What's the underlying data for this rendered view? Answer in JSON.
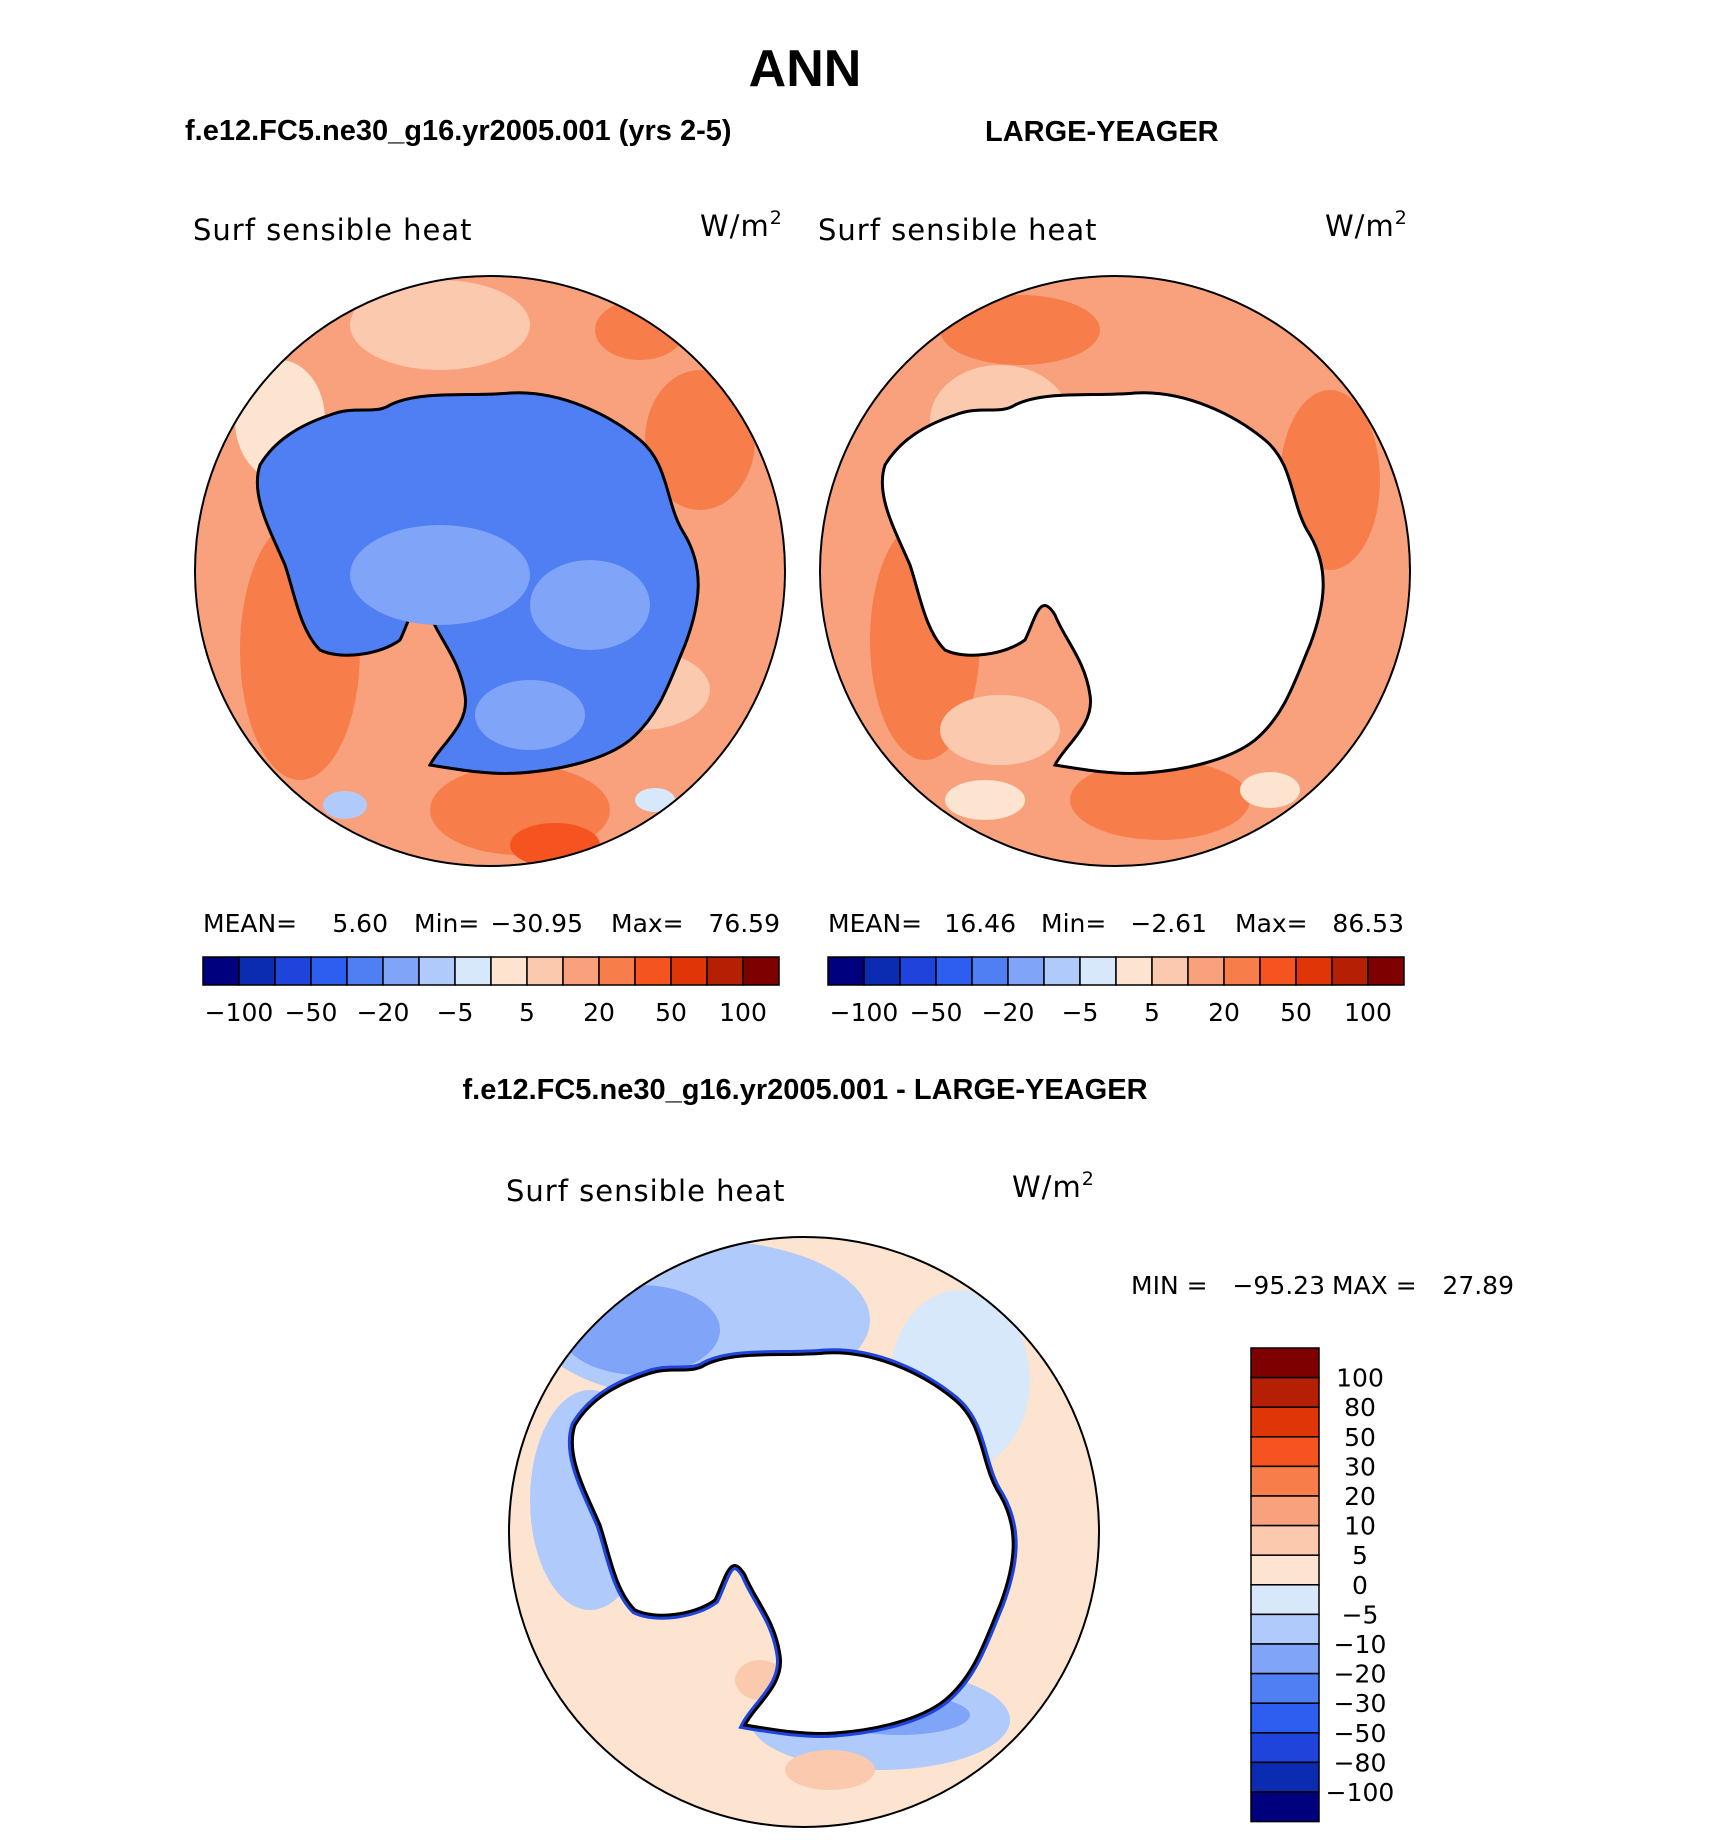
{
  "title": "ANN",
  "panels": {
    "left": {
      "case_label": "f.e12.FC5.ne30_g16.yr2005.001 (yrs 2-5)",
      "variable_label": "Surf sensible heat",
      "units_base": "W/m",
      "units_exp": "2",
      "stats": {
        "mean_label": "MEAN=",
        "mean_value": "5.60",
        "min_label": "Min=",
        "min_value": "−30.95",
        "max_label": "Max=",
        "max_value": "76.59"
      }
    },
    "right": {
      "case_label": "LARGE-YEAGER",
      "variable_label": "Surf sensible heat",
      "units_base": "W/m",
      "units_exp": "2",
      "stats": {
        "mean_label": "MEAN=",
        "mean_value": "16.46",
        "min_label": "Min=",
        "min_value": "−2.61",
        "max_label": "Max=",
        "max_value": "86.53"
      }
    },
    "diff": {
      "case_label": "f.e12.FC5.ne30_g16.yr2005.001 - LARGE-YEAGER",
      "variable_label": "Surf sensible heat",
      "units_base": "W/m",
      "units_exp": "2",
      "minmax": {
        "min_label": "MIN =",
        "min_value": "−95.23",
        "max_label": "MAX =",
        "max_value": "27.89"
      }
    }
  },
  "colorbar_horizontal": {
    "colors": [
      "#00007f",
      "#0b2bb0",
      "#1f44db",
      "#2e5ef0",
      "#4f7ff2",
      "#7fa4f8",
      "#b0cbfb",
      "#d7e8fb",
      "#fde4d0",
      "#fbc9ae",
      "#f9a17c",
      "#f77d4b",
      "#f5531f",
      "#e03607",
      "#b51f03",
      "#7f0000"
    ],
    "tick_labels": [
      "−100",
      "−50",
      "−20",
      "−5",
      "5",
      "20",
      "50",
      "100"
    ]
  },
  "colorbar_vertical": {
    "colors": [
      "#00007f",
      "#0b2bb0",
      "#1f44db",
      "#2e5ef0",
      "#4f7ff2",
      "#7fa4f8",
      "#b0cbfb",
      "#d7e8fb",
      "#fde4d0",
      "#fbc9ae",
      "#f9a17c",
      "#f77d4b",
      "#f5531f",
      "#e03607",
      "#b51f03",
      "#7f0000"
    ],
    "tick_labels": [
      "100",
      "80",
      "50",
      "30",
      "20",
      "10",
      "5",
      "0",
      "−5",
      "−10",
      "−20",
      "−30",
      "−50",
      "−80",
      "−100"
    ]
  },
  "map_colors": {
    "ocean_warm": "#f9a17c",
    "ocean_light": "#fbc9ae",
    "ocean_hot": "#f77d4b",
    "ice_blue": "#4f7ff2",
    "ice_light": "#7fa4f8",
    "diff_base": "#fde4d0",
    "diff_blue": "#b0cbfb",
    "diff_mid": "#7fa4f8",
    "coast": "#000000"
  }
}
